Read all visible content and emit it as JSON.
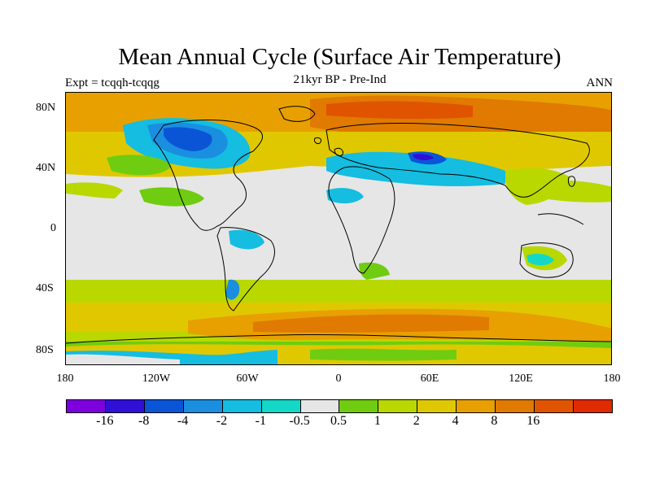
{
  "title": "Mean Annual Cycle (Surface Air Temperature)",
  "subtitle": "21kyr BP - Pre-Ind",
  "experiment": "Expt = tcqqh-tcqqg",
  "season": "ANN",
  "lat_labels": [
    "80N",
    "40N",
    "0",
    "40S",
    "80S"
  ],
  "lon_labels": [
    "180",
    "120W",
    "60W",
    "0",
    "60E",
    "120E",
    "180"
  ],
  "colorbar": {
    "colors": [
      "#7f00df",
      "#3010d6",
      "#0a55d6",
      "#1a8fe0",
      "#15bde0",
      "#13d8c8",
      "#e6e6e6",
      "#70cc10",
      "#b8d800",
      "#e0c800",
      "#e8a000",
      "#e07a00",
      "#e05400",
      "#e02a00"
    ],
    "labels": [
      "-16",
      "-8",
      "-4",
      "-2",
      "-1",
      "-0.5",
      "0.5",
      "1",
      "2",
      "4",
      "8",
      "16"
    ]
  },
  "map": {
    "background_color": "#e6e6e6",
    "coastline_color": "#000000"
  }
}
